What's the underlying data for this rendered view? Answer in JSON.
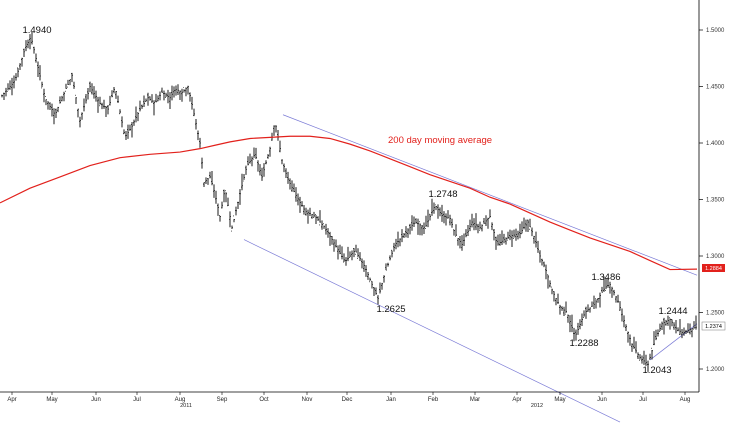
{
  "chart_data": {
    "type": "line",
    "title": "",
    "xlabel": "",
    "ylabel": "",
    "ylim": [
      1.175,
      1.52
    ],
    "y_ticks": [
      "1.5000",
      "1.4500",
      "1.4000",
      "1.3500",
      "1.3000",
      "1.2500",
      "1.2000"
    ],
    "x_months": [
      "Apr",
      "May",
      "Jun",
      "Jul",
      "Aug",
      "Sep",
      "Oct",
      "Nov",
      "Dec",
      "Jan",
      "Feb",
      "Mar",
      "Apr",
      "May",
      "Jun",
      "Jul",
      "Aug"
    ],
    "x_years": [
      "2011",
      "2012"
    ],
    "grid": false,
    "series": [
      {
        "name": "",
        "style": "ohlc",
        "color": "#000000",
        "x": [
          0,
          15,
          25,
          31,
          45,
          55,
          62,
          72,
          80,
          90,
          100,
          108,
          115,
          125,
          132,
          140,
          148,
          155,
          162,
          170,
          175,
          182,
          188,
          193,
          200,
          204,
          210,
          215,
          220,
          225,
          232,
          240,
          247,
          255,
          262,
          270,
          275,
          282,
          287,
          295,
          305,
          315,
          325,
          335,
          345,
          355,
          365,
          372,
          378,
          385,
          395,
          405,
          415,
          425,
          435,
          442,
          450,
          455,
          462,
          472,
          480,
          490,
          497,
          505,
          512,
          520,
          528,
          535,
          540,
          545,
          552,
          560,
          567,
          575,
          585,
          595,
          605,
          610,
          618,
          625,
          632,
          640,
          648,
          655,
          662,
          670,
          677,
          683,
          690,
          697
        ],
        "y": [
          1.44,
          1.455,
          1.4835,
          1.494,
          1.44,
          1.425,
          1.44,
          1.46,
          1.42,
          1.45,
          1.435,
          1.43,
          1.45,
          1.405,
          1.415,
          1.43,
          1.44,
          1.435,
          1.445,
          1.44,
          1.448,
          1.445,
          1.45,
          1.43,
          1.4,
          1.365,
          1.37,
          1.355,
          1.335,
          1.36,
          1.325,
          1.355,
          1.38,
          1.39,
          1.37,
          1.395,
          1.42,
          1.385,
          1.37,
          1.355,
          1.34,
          1.335,
          1.325,
          1.31,
          1.295,
          1.305,
          1.29,
          1.275,
          1.2625,
          1.285,
          1.31,
          1.32,
          1.33,
          1.325,
          1.345,
          1.336,
          1.333,
          1.32,
          1.31,
          1.33,
          1.325,
          1.335,
          1.31,
          1.315,
          1.318,
          1.32,
          1.33,
          1.315,
          1.3,
          1.29,
          1.27,
          1.255,
          1.25,
          1.2288,
          1.25,
          1.258,
          1.272,
          1.275,
          1.26,
          1.24,
          1.222,
          1.21,
          1.2043,
          1.225,
          1.24,
          1.244,
          1.235,
          1.232,
          1.235,
          1.2374
        ]
      },
      {
        "name": "200 day moving average",
        "style": "line",
        "color": "#e2211c",
        "x": [
          0,
          30,
          60,
          90,
          120,
          150,
          180,
          200,
          215,
          230,
          250,
          270,
          290,
          310,
          330,
          350,
          370,
          390,
          410,
          430,
          450,
          470,
          490,
          510,
          530,
          550,
          570,
          590,
          610,
          630,
          650,
          670,
          697
        ],
        "y": [
          1.347,
          1.36,
          1.37,
          1.38,
          1.387,
          1.39,
          1.392,
          1.395,
          1.398,
          1.401,
          1.404,
          1.405,
          1.406,
          1.406,
          1.404,
          1.399,
          1.393,
          1.386,
          1.379,
          1.372,
          1.366,
          1.36,
          1.352,
          1.346,
          1.338,
          1.33,
          1.323,
          1.316,
          1.31,
          1.304,
          1.296,
          1.288,
          1.2884
        ]
      }
    ],
    "channel_lines": [
      {
        "x": [
          283,
          697
        ],
        "y": [
          1.425,
          1.283
        ]
      },
      {
        "x": [
          244,
          620
        ],
        "y": [
          1.3145,
          1.153
        ]
      },
      {
        "x": [
          650,
          697
        ],
        "y": [
          1.208,
          1.24
        ]
      }
    ],
    "annotations": [
      {
        "text": "1.4940",
        "x": 31,
        "y": 1.494
      },
      {
        "text": "200 day moving average",
        "x": 390,
        "y": 1.398
      },
      {
        "text": "1.2748",
        "x": 445,
        "y": 1.348
      },
      {
        "text": "1.2625",
        "x": 385,
        "y": 1.2625
      },
      {
        "text": "1.3486",
        "x": 605,
        "y": 1.275
      },
      {
        "text": "1.2288",
        "x": 580,
        "y": 1.2288
      },
      {
        "text": "1.2444",
        "x": 672,
        "y": 1.244
      },
      {
        "text": "1.2043",
        "x": 655,
        "y": 1.2043
      }
    ],
    "price_tags": [
      {
        "text": "1.2884",
        "value": 1.2884,
        "color": "#e2211c"
      },
      {
        "text": "1.2374",
        "value": 1.2374,
        "color": "#ffffff"
      }
    ]
  }
}
